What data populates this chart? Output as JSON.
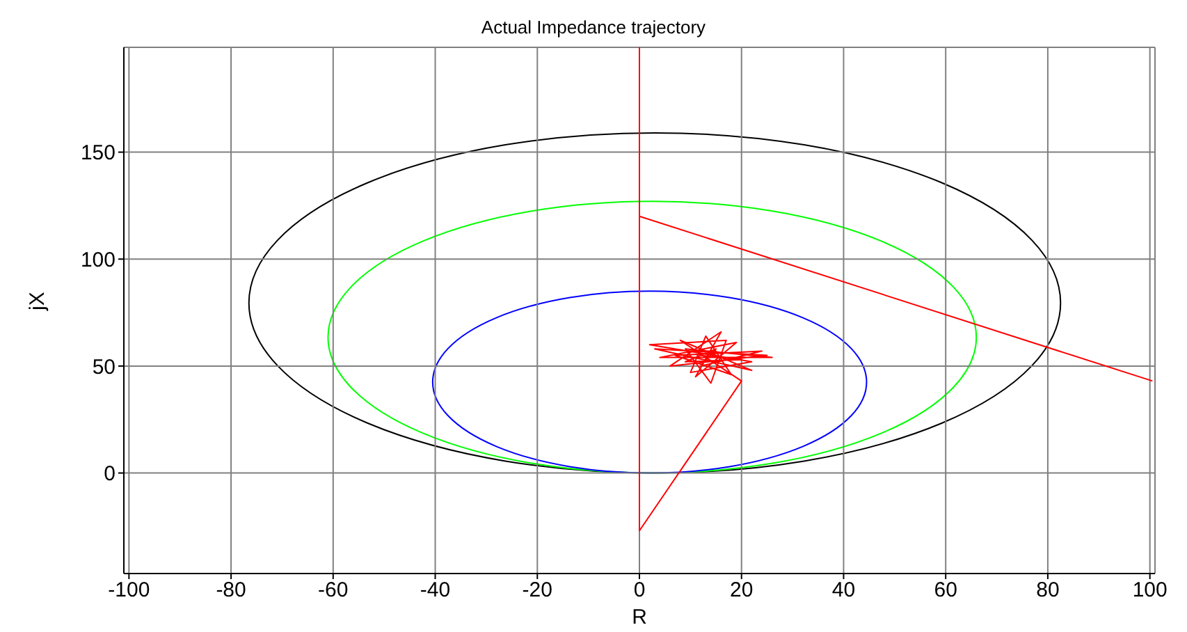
{
  "chart_data": {
    "type": "line",
    "title": "Actual Impedance trajectory",
    "xlabel": "R",
    "ylabel": "jX",
    "xlim": [
      -101,
      101
    ],
    "ylim": [
      -47,
      199
    ],
    "xticks": [
      -100,
      -80,
      -60,
      -40,
      -20,
      0,
      20,
      40,
      60,
      80,
      100
    ],
    "yticks": [
      0,
      50,
      100,
      150
    ],
    "grid": true,
    "series": [
      {
        "color": "#ff0000",
        "x": [
          100.5,
          0,
          0,
          0,
          20,
          8,
          22,
          3,
          25,
          6,
          16,
          11,
          19,
          4,
          26,
          9,
          14,
          17,
          2,
          22,
          10,
          13,
          18,
          7,
          24,
          12,
          15,
          9,
          20,
          12
        ],
        "values": [
          43,
          120,
          199,
          -27,
          43,
          62,
          48,
          58,
          55,
          50,
          66,
          45,
          61,
          54,
          54,
          58,
          42,
          62,
          60,
          52,
          47,
          64,
          46,
          55,
          57,
          50,
          58,
          52,
          53,
          55
        ]
      }
    ]
  }
}
